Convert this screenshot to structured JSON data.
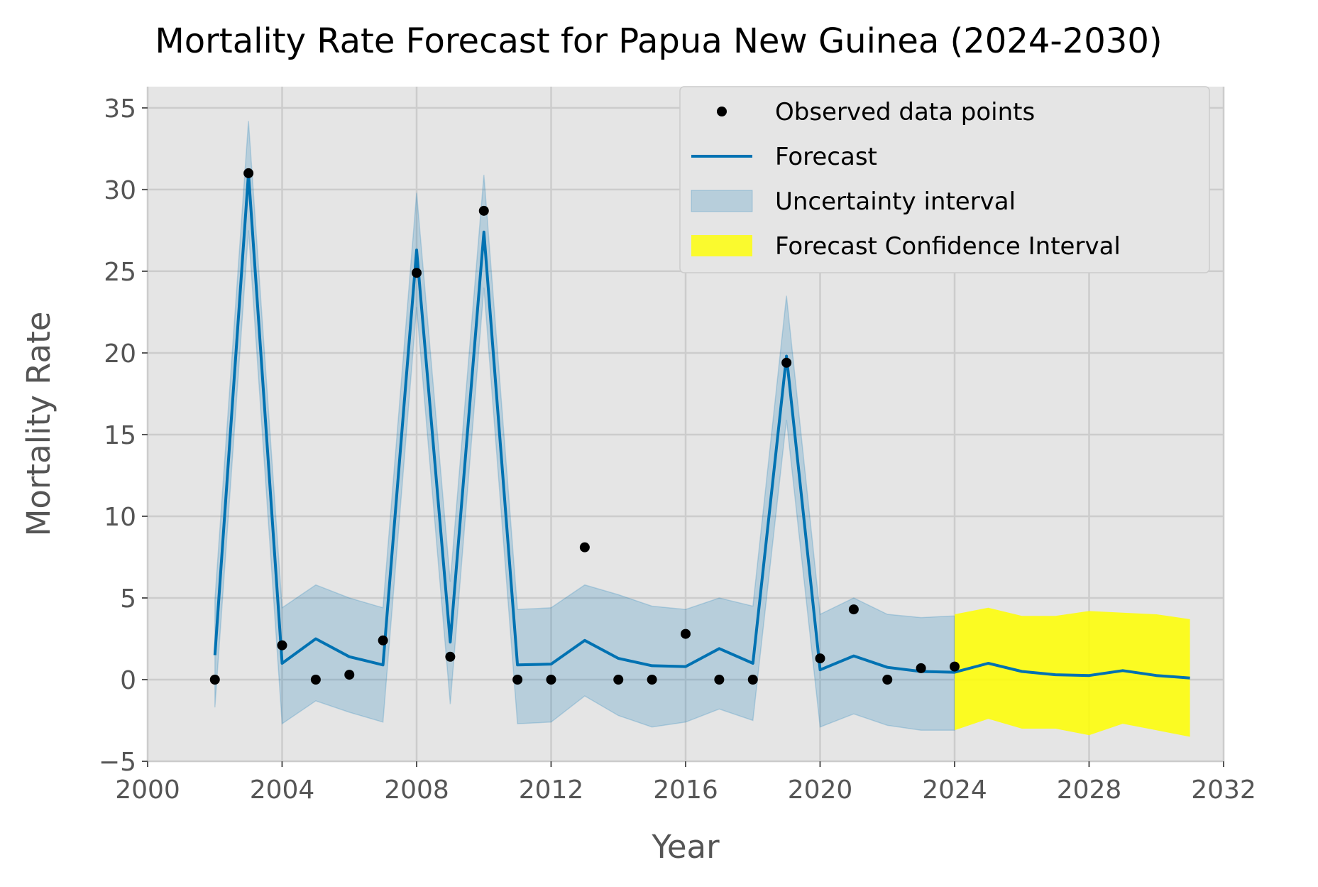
{
  "chart_data": {
    "type": "line",
    "title": "Mortality Rate Forecast for Papua New Guinea (2024-2030)",
    "xlabel": "Year",
    "ylabel": "Mortality Rate",
    "xlim": [
      2000,
      2032
    ],
    "ylim": [
      -5,
      36
    ],
    "xticks": [
      2000,
      2004,
      2008,
      2012,
      2016,
      2020,
      2024,
      2028,
      2032
    ],
    "yticks": [
      -5,
      0,
      5,
      10,
      15,
      20,
      25,
      30,
      35
    ],
    "grid": true,
    "legend_position": "upper-right",
    "legend": {
      "observed": "Observed data points",
      "forecast": "Forecast",
      "uncertainty": "Uncertainty interval",
      "confidence": "Forecast Confidence Interval"
    },
    "colors": {
      "forecast": "#0072B2",
      "uncertainty": "#0072B2",
      "confidence": "#ffff00",
      "observed": "#000000",
      "plot_background": "#e5e5e5",
      "grid": "#cccccc"
    },
    "observed": {
      "x": [
        2002,
        2003,
        2004,
        2005,
        2006,
        2007,
        2008,
        2009,
        2010,
        2011,
        2012,
        2013,
        2014,
        2015,
        2016,
        2017,
        2018,
        2019,
        2020,
        2021,
        2022,
        2023,
        2024
      ],
      "y": [
        0,
        31,
        2.1,
        0,
        0.3,
        2.4,
        24.9,
        1.4,
        28.7,
        0,
        0,
        8.1,
        0,
        0,
        2.8,
        0,
        0,
        19.4,
        1.3,
        4.3,
        0,
        0.7,
        0.8
      ]
    },
    "forecast": {
      "x": [
        2002,
        2003,
        2004,
        2005,
        2006,
        2007,
        2008,
        2009,
        2010,
        2011,
        2012,
        2013,
        2014,
        2015,
        2016,
        2017,
        2018,
        2019,
        2020,
        2021,
        2022,
        2023,
        2024,
        2025,
        2026,
        2027,
        2028,
        2029,
        2030,
        2031
      ],
      "y": [
        1.5,
        31.0,
        1.0,
        2.5,
        1.4,
        0.9,
        26.3,
        2.3,
        27.4,
        0.9,
        0.95,
        2.4,
        1.3,
        0.85,
        0.8,
        1.9,
        1.0,
        19.8,
        0.6,
        1.45,
        0.75,
        0.5,
        0.45,
        1.0,
        0.5,
        0.3,
        0.25,
        0.55,
        0.25,
        0.1
      ]
    },
    "uncertainty": {
      "x": [
        2002,
        2003,
        2004,
        2005,
        2006,
        2007,
        2008,
        2009,
        2010,
        2011,
        2012,
        2013,
        2014,
        2015,
        2016,
        2017,
        2018,
        2019,
        2020,
        2021,
        2022,
        2023,
        2024
      ],
      "lower": [
        -1.7,
        27.5,
        -2.7,
        -1.3,
        -2.0,
        -2.6,
        22.8,
        -1.5,
        24.0,
        -2.7,
        -2.6,
        -1.0,
        -2.2,
        -2.9,
        -2.6,
        -1.8,
        -2.5,
        15.9,
        -2.9,
        -2.1,
        -2.8,
        -3.1,
        -3.1
      ],
      "upper": [
        4.9,
        34.2,
        4.4,
        5.8,
        5.0,
        4.4,
        29.8,
        6.0,
        30.9,
        4.3,
        4.4,
        5.8,
        5.2,
        4.5,
        4.3,
        5.0,
        4.5,
        23.5,
        4.0,
        5.0,
        4.0,
        3.8,
        3.9
      ]
    },
    "confidence": {
      "x": [
        2024,
        2025,
        2026,
        2027,
        2028,
        2029,
        2030,
        2031
      ],
      "lower": [
        -3.1,
        -2.4,
        -3.0,
        -3.0,
        -3.4,
        -2.7,
        -3.1,
        -3.5
      ],
      "upper": [
        4.0,
        4.4,
        3.9,
        3.9,
        4.2,
        4.1,
        4.0,
        3.7
      ]
    }
  }
}
